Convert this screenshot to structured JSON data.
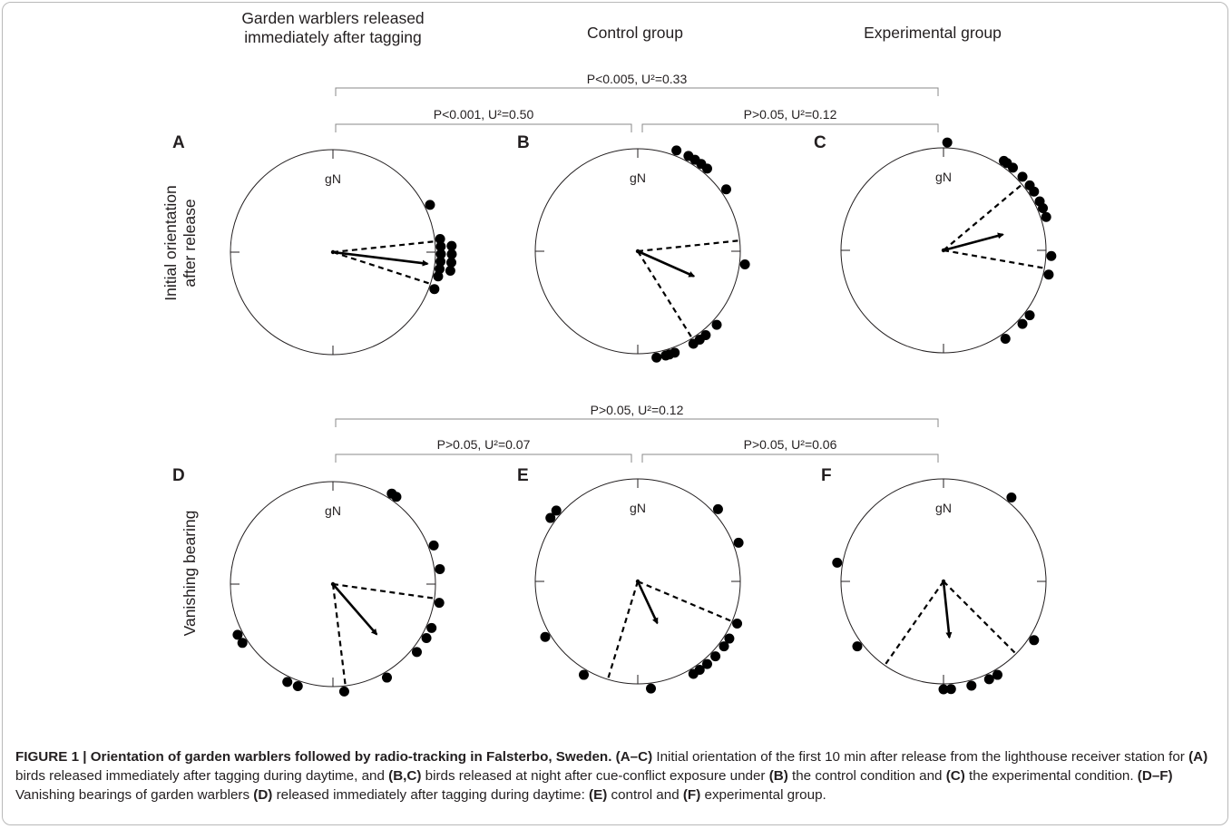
{
  "column_headers": [
    [
      "Garden warblers released",
      "immediately after tagging"
    ],
    [
      "Control group"
    ],
    [
      "Experimental group"
    ]
  ],
  "row_labels": [
    [
      "Initial orientation",
      "after release"
    ],
    [
      "Vanishing bearing"
    ]
  ],
  "north_label": "gN",
  "comparisons": [
    {
      "from": "A",
      "to": "C",
      "label": "P<0.005, U²=0.33"
    },
    {
      "from": "A",
      "to": "B",
      "label": "P<0.001, U²=0.50"
    },
    {
      "from": "B",
      "to": "C",
      "label": "P>0.05, U²=0.12"
    },
    {
      "from": "D",
      "to": "F",
      "label": "P>0.05, U²=0.12"
    },
    {
      "from": "D",
      "to": "E",
      "label": "P>0.05, U²=0.07"
    },
    {
      "from": "E",
      "to": "F",
      "label": "P>0.05, U²=0.06"
    }
  ],
  "caption": {
    "figure_label": "FIGURE 1 | Orientation of garden warblers followed by radio-tracking in Falsterbo, Sweden.",
    "p1": "(A–C)",
    "t1": " Initial orientation of the first 10 min after release from the lighthouse receiver station for ",
    "p2": "(A)",
    "t2": " birds released immediately after tagging during daytime, and ",
    "p3": "(B,C)",
    "t3": " birds released at night after cue-conflict exposure under ",
    "p4": "(B)",
    "t4": " the control condition and ",
    "p5": "(C)",
    "t5": " the experimental condition. ",
    "p6": "(D–F)",
    "t6": " Vanishing bearings of garden warblers ",
    "p7": "(D)",
    "t7": " released immediately after tagging during daytime: ",
    "p8": "(E)",
    "t8": " control and ",
    "p9": "(F)",
    "t9": " experimental group."
  },
  "chart_data": [
    {
      "type": "scatter",
      "subtype": "circular",
      "panel": "A",
      "bearings_deg": [
        64,
        83,
        87,
        87,
        91,
        91,
        95,
        95,
        99,
        99,
        103,
        110
      ],
      "mean_vector": {
        "direction_deg": 97,
        "length": 0.93
      },
      "confidence_interval_deg": [
        84,
        108
      ]
    },
    {
      "type": "scatter",
      "subtype": "circular",
      "panel": "B",
      "bearings_deg": [
        21,
        28,
        32,
        36,
        40,
        55,
        97,
        133,
        141,
        145,
        149,
        160,
        163,
        165,
        170
      ],
      "mean_vector": {
        "direction_deg": 114,
        "length": 0.6
      },
      "confidence_interval_deg": [
        84,
        148
      ]
    },
    {
      "type": "scatter",
      "subtype": "circular",
      "panel": "C",
      "bearings_deg": [
        2,
        34,
        36,
        40,
        47,
        53,
        57,
        63,
        67,
        72,
        93,
        103,
        127,
        133,
        145
      ],
      "mean_vector": {
        "direction_deg": 75,
        "length": 0.6
      },
      "confidence_interval_deg": [
        50,
        100
      ]
    },
    {
      "type": "scatter",
      "subtype": "circular",
      "panel": "D",
      "bearings_deg": [
        33,
        36,
        69,
        82,
        100,
        114,
        120,
        129,
        150,
        174,
        199,
        205,
        237,
        242
      ],
      "mean_vector": {
        "direction_deg": 139,
        "length": 0.65
      },
      "confidence_interval_deg": [
        98,
        173
      ]
    },
    {
      "type": "scatter",
      "subtype": "circular",
      "panel": "E",
      "bearings_deg": [
        48,
        69,
        113,
        122,
        127,
        134,
        140,
        145,
        149,
        173,
        210,
        239,
        306,
        311
      ],
      "mean_vector": {
        "direction_deg": 155,
        "length": 0.45
      },
      "confidence_interval_deg": [
        113,
        197
      ]
    },
    {
      "type": "scatter",
      "subtype": "circular",
      "panel": "F",
      "bearings_deg": [
        39,
        123,
        150,
        155,
        165,
        176,
        180,
        233,
        280
      ],
      "mean_vector": {
        "direction_deg": 174,
        "length": 0.55
      },
      "confidence_interval_deg": [
        135,
        215
      ]
    }
  ]
}
